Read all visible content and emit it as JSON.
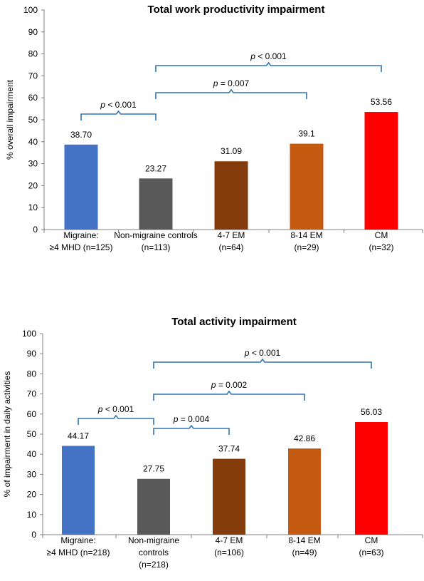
{
  "chart_data": [
    {
      "type": "bar",
      "title": "Total work productivity impairment",
      "ylabel": "% overall impairment",
      "xlabel": "",
      "ylim": [
        0,
        100
      ],
      "yticks": [
        0,
        10,
        20,
        30,
        40,
        50,
        60,
        70,
        80,
        90,
        100
      ],
      "grid": false,
      "categories": [
        [
          "Migraine:",
          "≥4 MHD  (n=125)"
        ],
        [
          "Non-migraine controls",
          "(n=113)"
        ],
        [
          "4-7 EM",
          "(n=64)"
        ],
        [
          "8-14 EM",
          "(n=29)"
        ],
        [
          "CM",
          "(n=32)"
        ]
      ],
      "values": [
        38.7,
        23.27,
        31.09,
        39.1,
        53.56
      ],
      "value_labels": [
        "38.70",
        "23.27",
        "31.09",
        "39.1",
        "53.56"
      ],
      "colors": [
        "#4472C4",
        "#595959",
        "#843C0C",
        "#C55A11",
        "#FF0000"
      ],
      "brackets": [
        {
          "from": 0,
          "to": 1,
          "p": "< 0.001"
        },
        {
          "from": 1,
          "to": 3,
          "p": "= 0.007"
        },
        {
          "from": 1,
          "to": 4,
          "p": "< 0.001"
        }
      ]
    },
    {
      "type": "bar",
      "title": "Total activity impairment",
      "ylabel": "% of impairment in daily activities",
      "xlabel": "",
      "ylim": [
        0,
        100
      ],
      "yticks": [
        0,
        10,
        20,
        30,
        40,
        50,
        60,
        70,
        80,
        90,
        100
      ],
      "grid": false,
      "categories": [
        [
          "Migraine:",
          "≥4 MHD  (n=218)"
        ],
        [
          "Non-migraine",
          "controls",
          "(n=218)"
        ],
        [
          "4-7 EM",
          "(n=106)"
        ],
        [
          "8-14 EM",
          "(n=49)"
        ],
        [
          "CM",
          "(n=63)"
        ]
      ],
      "values": [
        44.17,
        27.75,
        37.74,
        42.86,
        56.03
      ],
      "value_labels": [
        "44.17",
        "27.75",
        "37.74",
        "42.86",
        "56.03"
      ],
      "colors": [
        "#4472C4",
        "#595959",
        "#843C0C",
        "#C55A11",
        "#FF0000"
      ],
      "brackets": [
        {
          "from": 0,
          "to": 1,
          "p": "< 0.001"
        },
        {
          "from": 1,
          "to": 2,
          "p": "= 0.004"
        },
        {
          "from": 1,
          "to": 3,
          "p": "= 0.002"
        },
        {
          "from": 1,
          "to": 4,
          "p": "< 0.001"
        }
      ]
    }
  ]
}
